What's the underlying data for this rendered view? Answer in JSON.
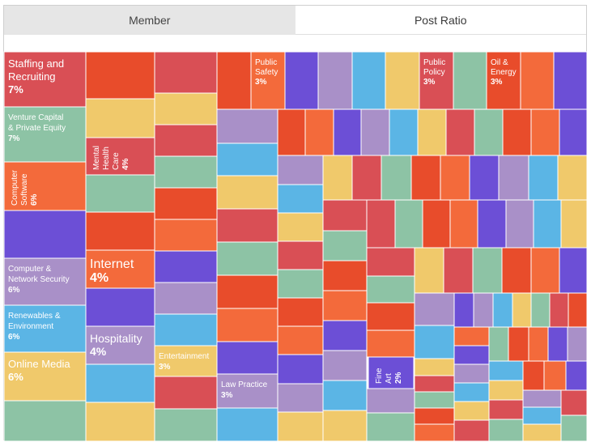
{
  "tabs": [
    {
      "label": "Member",
      "active": false
    },
    {
      "label": "Post Ratio",
      "active": true
    }
  ],
  "chart_data": {
    "type": "treemap",
    "title": "",
    "palette": [
      "#d94f55",
      "#e84c2b",
      "#f0c96b",
      "#8dc3a5",
      "#f36a3b",
      "#6c4fd6",
      "#a990c8",
      "#5bb5e5"
    ],
    "labeled_tiles": [
      {
        "name": "Staffing and Recruiting",
        "value": "7%",
        "color": "#d94f55"
      },
      {
        "name": "Venture Capital & Private Equity",
        "value": "7%",
        "color": "#8dc3a5"
      },
      {
        "name": "Computer Software",
        "value": "6%",
        "color": "#f36a3b"
      },
      {
        "name": "Computer & Network Security",
        "value": "6%",
        "color": "#a990c8"
      },
      {
        "name": "Renewables & Environment",
        "value": "6%",
        "color": "#5bb5e5"
      },
      {
        "name": "Online Media",
        "value": "6%",
        "color": "#f0c96b"
      },
      {
        "name": "Mental Health Care",
        "value": "4%",
        "color": "#d94f55"
      },
      {
        "name": "Internet",
        "value": "4%",
        "color": "#f36a3b"
      },
      {
        "name": "Hospitality",
        "value": "4%",
        "color": "#a990c8"
      },
      {
        "name": "Entertainment",
        "value": "3%",
        "color": "#f0c96b"
      },
      {
        "name": "Law Practice",
        "value": "3%",
        "color": "#a990c8"
      },
      {
        "name": "Public Safety",
        "value": "3%",
        "color": "#f36a3b"
      },
      {
        "name": "Public Policy",
        "value": "3%",
        "color": "#d94f55"
      },
      {
        "name": "Oil & Energy",
        "value": "3%",
        "color": "#e84c2b"
      },
      {
        "name": "Fine Art",
        "value": "2%",
        "color": "#6c4fd6"
      }
    ]
  }
}
